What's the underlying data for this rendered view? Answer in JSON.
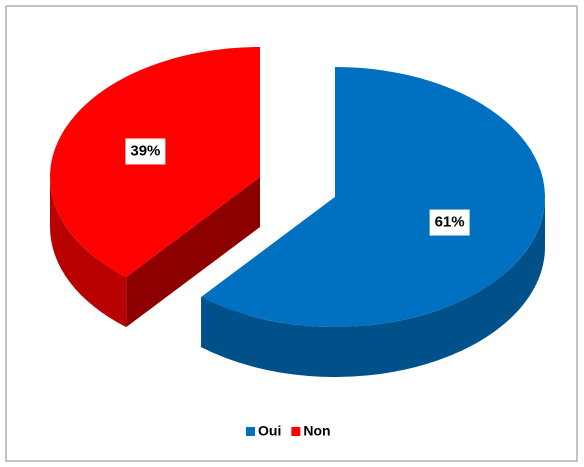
{
  "chart_data": {
    "type": "pie",
    "categories": [
      "Oui",
      "Non"
    ],
    "values": [
      61,
      39
    ],
    "value_labels": [
      "61%",
      "39%"
    ],
    "colors": [
      "#0070c0",
      "#ff0000"
    ]
  }
}
